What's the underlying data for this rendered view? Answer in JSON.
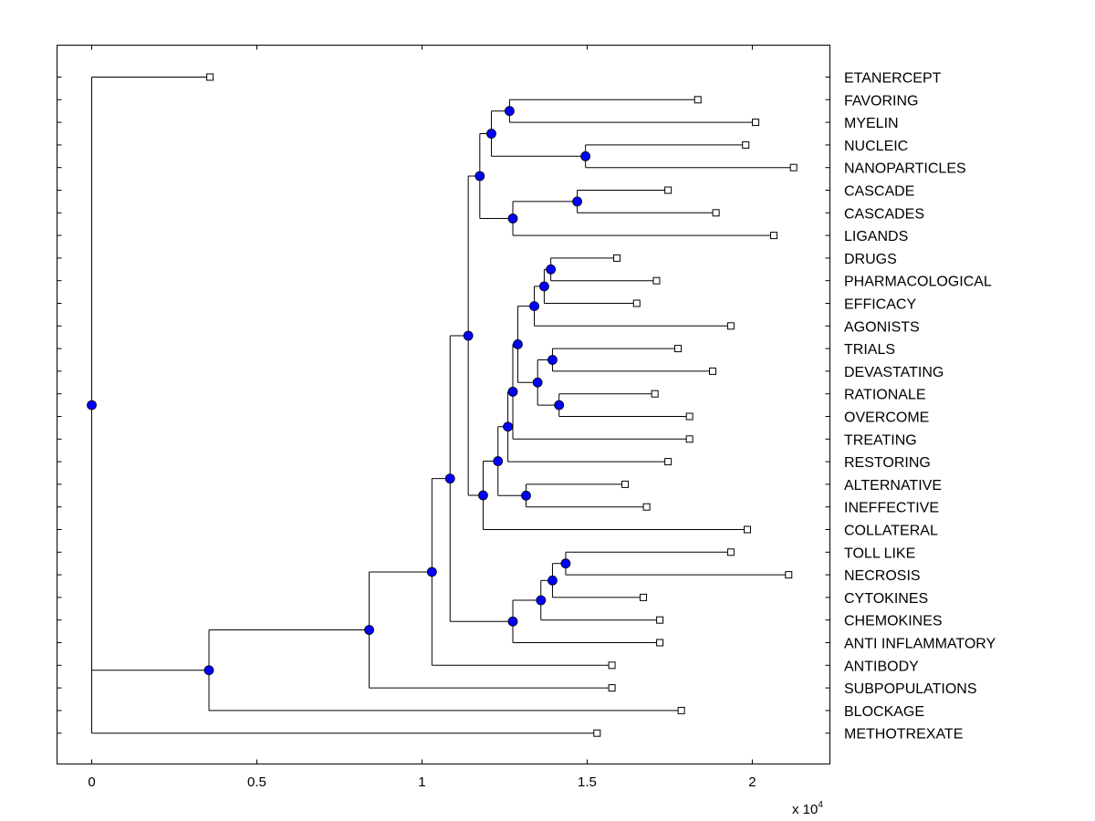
{
  "leaves": [
    {
      "label": "ETANERCEPT",
      "value": 3580
    },
    {
      "label": "FAVORING",
      "value": 18350
    },
    {
      "label": "MYELIN",
      "value": 20100
    },
    {
      "label": "NUCLEIC",
      "value": 19800
    },
    {
      "label": "NANOPARTICLES",
      "value": 21250
    },
    {
      "label": "CASCADE",
      "value": 17450
    },
    {
      "label": "CASCADES",
      "value": 18900
    },
    {
      "label": "LIGANDS",
      "value": 20650
    },
    {
      "label": "DRUGS",
      "value": 15900
    },
    {
      "label": "PHARMACOLOGICAL",
      "value": 17100
    },
    {
      "label": "EFFICACY",
      "value": 16500
    },
    {
      "label": "AGONISTS",
      "value": 19350
    },
    {
      "label": "TRIALS",
      "value": 17750
    },
    {
      "label": "DEVASTATING",
      "value": 18800
    },
    {
      "label": "RATIONALE",
      "value": 17050
    },
    {
      "label": "OVERCOME",
      "value": 18100
    },
    {
      "label": "TREATING",
      "value": 18100
    },
    {
      "label": "RESTORING",
      "value": 17450
    },
    {
      "label": "ALTERNATIVE",
      "value": 16150
    },
    {
      "label": "INEFFECTIVE",
      "value": 16800
    },
    {
      "label": "COLLATERAL",
      "value": 19850
    },
    {
      "label": "TOLL LIKE",
      "value": 19350
    },
    {
      "label": "NECROSIS",
      "value": 21100
    },
    {
      "label": "CYTOKINES",
      "value": 16700
    },
    {
      "label": "CHEMOKINES",
      "value": 17200
    },
    {
      "label": "ANTI INFLAMMATORY",
      "value": 17200
    },
    {
      "label": "ANTIBODY",
      "value": 15750
    },
    {
      "label": "SUBPOPULATIONS",
      "value": 15750
    },
    {
      "label": "BLOCKAGE",
      "value": 17850
    },
    {
      "label": "METHOTREXATE",
      "value": 15300
    }
  ],
  "tree": {
    "v": 0,
    "c": [
      0,
      {
        "v": 3550,
        "c": [
          {
            "v": 8400,
            "c": [
              {
                "v": 10300,
                "c": [
                  {
                    "v": 10850,
                    "c": [
                      {
                        "v": 11400,
                        "c": [
                          {
                            "v": 11750,
                            "c": [
                              {
                                "v": 12100,
                                "c": [
                                  {
                                    "v": 12650,
                                    "c": [
                                      1,
                                      2
                                    ]
                                  },
                                  {
                                    "v": 14950,
                                    "c": [
                                      3,
                                      4
                                    ]
                                  }
                                ]
                              },
                              {
                                "v": 12750,
                                "c": [
                                  {
                                    "v": 14700,
                                    "c": [
                                      5,
                                      6
                                    ]
                                  },
                                  7
                                ]
                              }
                            ]
                          },
                          {
                            "v": 11850,
                            "c": [
                              {
                                "v": 12300,
                                "c": [
                                  {
                                    "v": 12600,
                                    "c": [
                                      {
                                        "v": 12750,
                                        "c": [
                                          {
                                            "v": 12900,
                                            "c": [
                                              {
                                                "v": 13400,
                                                "c": [
                                                  {
                                                    "v": 13700,
                                                    "c": [
                                                      {
                                                        "v": 13900,
                                                        "c": [
                                                          8,
                                                          9
                                                        ]
                                                      },
                                                      10
                                                    ]
                                                  },
                                                  11
                                                ]
                                              },
                                              {
                                                "v": 13500,
                                                "c": [
                                                  {
                                                    "v": 13950,
                                                    "c": [
                                                      12,
                                                      13
                                                    ]
                                                  },
                                                  {
                                                    "v": 14150,
                                                    "c": [
                                                      14,
                                                      15
                                                    ]
                                                  }
                                                ]
                                              }
                                            ]
                                          },
                                          16
                                        ]
                                      },
                                      17
                                    ]
                                  },
                                  {
                                    "v": 13150,
                                    "c": [
                                      18,
                                      19
                                    ]
                                  }
                                ]
                              },
                              20
                            ]
                          }
                        ]
                      },
                      {
                        "v": 12750,
                        "c": [
                          {
                            "v": 13600,
                            "c": [
                              {
                                "v": 13950,
                                "c": [
                                  {
                                    "v": 14350,
                                    "c": [
                                      21,
                                      22
                                    ]
                                  },
                                  23
                                ]
                              },
                              24
                            ]
                          },
                          25
                        ]
                      }
                    ]
                  },
                  26
                ]
              },
              27
            ]
          },
          28
        ]
      },
      29
    ]
  },
  "axis": {
    "xlim": [
      -1050,
      22350
    ],
    "ticks": [
      {
        "value": 0,
        "label": "0"
      },
      {
        "value": 5000,
        "label": "0.5"
      },
      {
        "value": 10000,
        "label": "1"
      },
      {
        "value": 15000,
        "label": "1.5"
      },
      {
        "value": 20000,
        "label": "2"
      }
    ],
    "scale_prefix": "x 10",
    "scale_exponent": "4"
  }
}
